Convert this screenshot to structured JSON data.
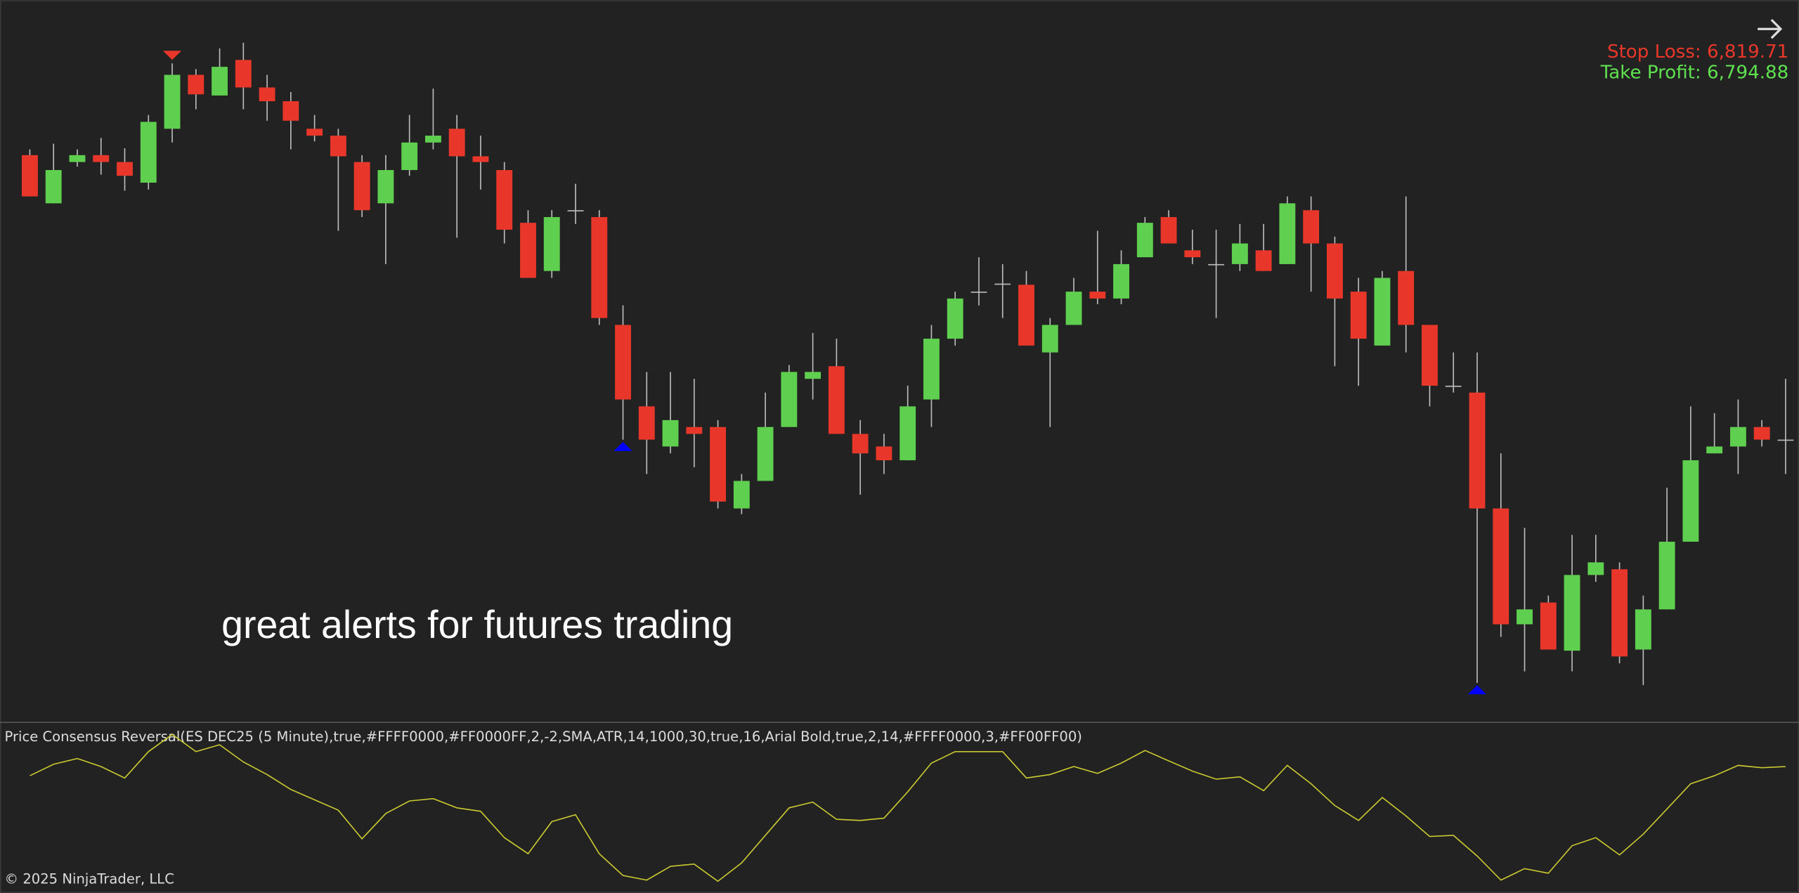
{
  "chart_data": [
    {
      "type": "candlestick",
      "open": [
        6816.5,
        6812.3,
        6815.9,
        6816.5,
        6815.9,
        6814.1,
        6818.8,
        6823.5,
        6821.7,
        6824.8,
        6822.4,
        6821.2,
        6818.8,
        6818.2,
        6815.9,
        6812.3,
        6815.2,
        6817.6,
        6818.8,
        6816.4,
        6815.2,
        6810.6,
        6806.4,
        6811.6,
        6811.1,
        6801.7,
        6794.6,
        6791.1,
        6792.8,
        6792.8,
        6785.7,
        6788.1,
        6792.8,
        6797.0,
        6798.1,
        6792.2,
        6791.1,
        6789.9,
        6795.2,
        6800.5,
        6804.5,
        6805.2,
        6805.2,
        6799.3,
        6801.7,
        6804.6,
        6804.0,
        6807.6,
        6811.1,
        6808.2,
        6806.9,
        6807.0,
        6808.2,
        6807.0,
        6811.7,
        6808.8,
        6804.6,
        6799.9,
        6806.4,
        6801.7,
        6796.3,
        6795.8,
        6785.7,
        6775.6,
        6777.5,
        6773.3,
        6779.9,
        6780.4,
        6773.4,
        6776.9,
        6782.8,
        6790.5,
        6791.1,
        6792.8,
        6791.6
      ],
      "high": [
        6817.0,
        6817.5,
        6817.0,
        6818.0,
        6817.1,
        6820.0,
        6824.5,
        6824.0,
        6825.8,
        6826.3,
        6823.5,
        6822.0,
        6820.0,
        6818.8,
        6816.5,
        6816.5,
        6820.0,
        6822.3,
        6820.0,
        6818.2,
        6815.9,
        6811.7,
        6811.7,
        6814.0,
        6811.7,
        6803.4,
        6797.6,
        6797.6,
        6797.0,
        6793.4,
        6788.7,
        6795.8,
        6798.2,
        6801.0,
        6800.5,
        6793.4,
        6792.2,
        6796.4,
        6801.7,
        6804.6,
        6807.6,
        6807.0,
        6806.4,
        6802.3,
        6805.8,
        6809.9,
        6808.2,
        6811.1,
        6811.7,
        6810.0,
        6810.0,
        6810.5,
        6810.5,
        6812.9,
        6812.9,
        6809.4,
        6805.8,
        6806.4,
        6812.9,
        6801.7,
        6799.3,
        6799.3,
        6790.5,
        6784.0,
        6778.1,
        6783.4,
        6783.4,
        6781.0,
        6778.1,
        6787.5,
        6794.6,
        6794.0,
        6795.2,
        6793.4,
        6797.0
      ],
      "low": [
        6812.9,
        6812.3,
        6815.5,
        6814.8,
        6813.4,
        6813.5,
        6817.6,
        6820.5,
        6821.7,
        6820.5,
        6819.5,
        6817.0,
        6817.7,
        6809.9,
        6811.1,
        6807.0,
        6814.7,
        6817.0,
        6809.3,
        6813.5,
        6808.8,
        6805.8,
        6805.8,
        6810.5,
        6801.7,
        6791.7,
        6788.7,
        6790.5,
        6789.3,
        6785.7,
        6785.2,
        6788.1,
        6792.8,
        6795.2,
        6792.2,
        6786.9,
        6788.7,
        6789.9,
        6792.8,
        6799.9,
        6803.4,
        6802.3,
        6799.9,
        6792.8,
        6801.7,
        6803.5,
        6803.5,
        6807.6,
        6808.8,
        6807.0,
        6802.3,
        6806.4,
        6806.4,
        6807.0,
        6804.6,
        6798.1,
        6796.4,
        6799.9,
        6799.3,
        6794.6,
        6795.8,
        6770.5,
        6774.5,
        6771.5,
        6773.4,
        6771.5,
        6779.3,
        6772.2,
        6770.3,
        6776.9,
        6782.8,
        6790.5,
        6788.7,
        6791.1,
        6788.7
      ],
      "close": [
        6812.9,
        6815.2,
        6816.5,
        6815.9,
        6814.7,
        6819.4,
        6823.5,
        6821.8,
        6824.2,
        6822.4,
        6821.2,
        6819.5,
        6818.2,
        6816.4,
        6811.7,
        6815.2,
        6817.6,
        6818.2,
        6816.4,
        6815.9,
        6810.0,
        6805.8,
        6811.1,
        6811.7,
        6802.3,
        6795.2,
        6791.7,
        6793.4,
        6792.2,
        6786.3,
        6788.1,
        6792.8,
        6797.6,
        6797.6,
        6792.2,
        6790.5,
        6789.9,
        6794.6,
        6800.5,
        6804.0,
        6804.6,
        6805.3,
        6799.9,
        6801.7,
        6804.6,
        6804.0,
        6807.0,
        6810.6,
        6808.8,
        6807.6,
        6807.0,
        6808.8,
        6806.4,
        6812.3,
        6808.8,
        6804.0,
        6800.5,
        6805.8,
        6801.7,
        6796.4,
        6796.4,
        6785.7,
        6775.6,
        6776.9,
        6773.4,
        6779.9,
        6781.0,
        6772.8,
        6776.9,
        6782.8,
        6789.9,
        6791.1,
        6792.8,
        6791.7,
        6791.7
      ],
      "up_color": "#5fcf4f",
      "down_color": "#e8372a",
      "ylim": [
        6767.2,
        6830
      ],
      "signals": [
        {
          "candle": 6,
          "direction": "down",
          "color": "#e8372a"
        },
        {
          "candle": 25,
          "direction": "up",
          "color": "#0000ff"
        },
        {
          "candle": 61,
          "direction": "up",
          "color": "#0000ff"
        }
      ],
      "annotations": [
        {
          "text": "Stop Loss: 6,819.71",
          "color": "#e8372a"
        },
        {
          "text": "Take Profit: 6,794.88",
          "color": "#5fe04f"
        }
      ],
      "caption": "great alerts for futures trading"
    },
    {
      "type": "line",
      "title": "Price Consensus Reversal(ES DEC25 (5 Minute),true,#FFFF0000,#FF0000FF,2,-2,SMA,ATR,14,1000,30,true,16,Arial Bold,true,2,14,#FFFF0000,3,#FF00FF00)",
      "values": [
        94,
        104,
        109,
        102,
        92,
        115,
        130,
        115,
        121,
        106,
        95,
        82,
        73,
        64,
        39,
        61,
        72,
        74,
        66,
        63,
        40,
        26,
        54,
        60,
        26,
        7,
        3,
        15,
        17,
        2,
        18,
        42,
        66,
        71,
        56,
        55,
        57,
        80,
        105,
        115,
        115,
        115,
        92,
        95,
        102,
        96,
        105,
        116,
        107,
        98,
        91,
        93,
        81,
        103,
        87,
        68,
        55,
        75,
        59,
        41,
        42,
        24,
        3,
        13,
        9,
        33,
        40,
        25,
        43,
        65,
        87,
        94,
        103,
        101,
        102
      ],
      "color": "#c8c832",
      "ylim": [
        -8,
        140
      ]
    }
  ],
  "footer": "© 2025 NinjaTrader, LLC"
}
